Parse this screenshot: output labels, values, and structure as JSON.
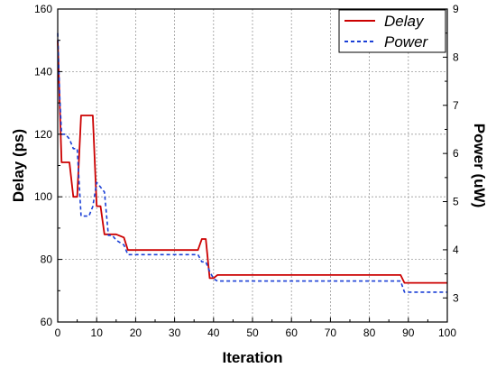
{
  "chart_data": {
    "type": "line",
    "title": "",
    "xlabel": "Iteration",
    "ylabel": "Delay (ps)",
    "y2label": "Power (uW)",
    "xlim": [
      0,
      100
    ],
    "ylim": [
      60,
      160
    ],
    "y2lim": [
      2.5,
      9
    ],
    "xticks": [
      0,
      10,
      20,
      30,
      40,
      50,
      60,
      70,
      80,
      90,
      100
    ],
    "yticks": [
      60,
      80,
      100,
      120,
      140,
      160
    ],
    "y2ticks": [
      3,
      4,
      5,
      6,
      7,
      8,
      9
    ],
    "grid": true,
    "legend_position": "top-right",
    "series": [
      {
        "name": "Delay",
        "axis": "left",
        "color": "#cc0000",
        "style": "solid",
        "x": [
          0,
          0.5,
          1,
          2,
          3,
          4,
          5,
          6,
          7,
          8,
          9,
          10,
          11,
          12,
          13,
          14,
          15,
          16,
          17,
          18,
          36,
          37,
          38,
          39,
          40,
          41,
          88,
          89,
          100
        ],
        "y": [
          150,
          130,
          111,
          111,
          111,
          100,
          100,
          126,
          126,
          126,
          126,
          97,
          97,
          88,
          88,
          88,
          88,
          87.5,
          87,
          83,
          83,
          86.5,
          86.5,
          74,
          74,
          75,
          75,
          72.5,
          72.5
        ]
      },
      {
        "name": "Power",
        "axis": "right",
        "color": "#1a3fd6",
        "style": "dashed",
        "x": [
          0,
          0.5,
          1,
          2,
          3,
          4,
          5,
          6,
          7,
          8,
          9,
          10,
          11,
          12,
          13,
          14,
          15,
          16,
          17,
          18,
          36,
          37,
          38,
          39,
          40,
          41,
          88,
          89,
          100
        ],
        "y": [
          8.5,
          7.2,
          6.4,
          6.4,
          6.3,
          6.1,
          6.1,
          4.7,
          4.7,
          4.7,
          4.9,
          5.4,
          5.3,
          5.2,
          4.3,
          4.3,
          4.2,
          4.15,
          4.1,
          3.9,
          3.9,
          3.75,
          3.75,
          3.55,
          3.4,
          3.35,
          3.35,
          3.12,
          3.12
        ]
      }
    ]
  }
}
